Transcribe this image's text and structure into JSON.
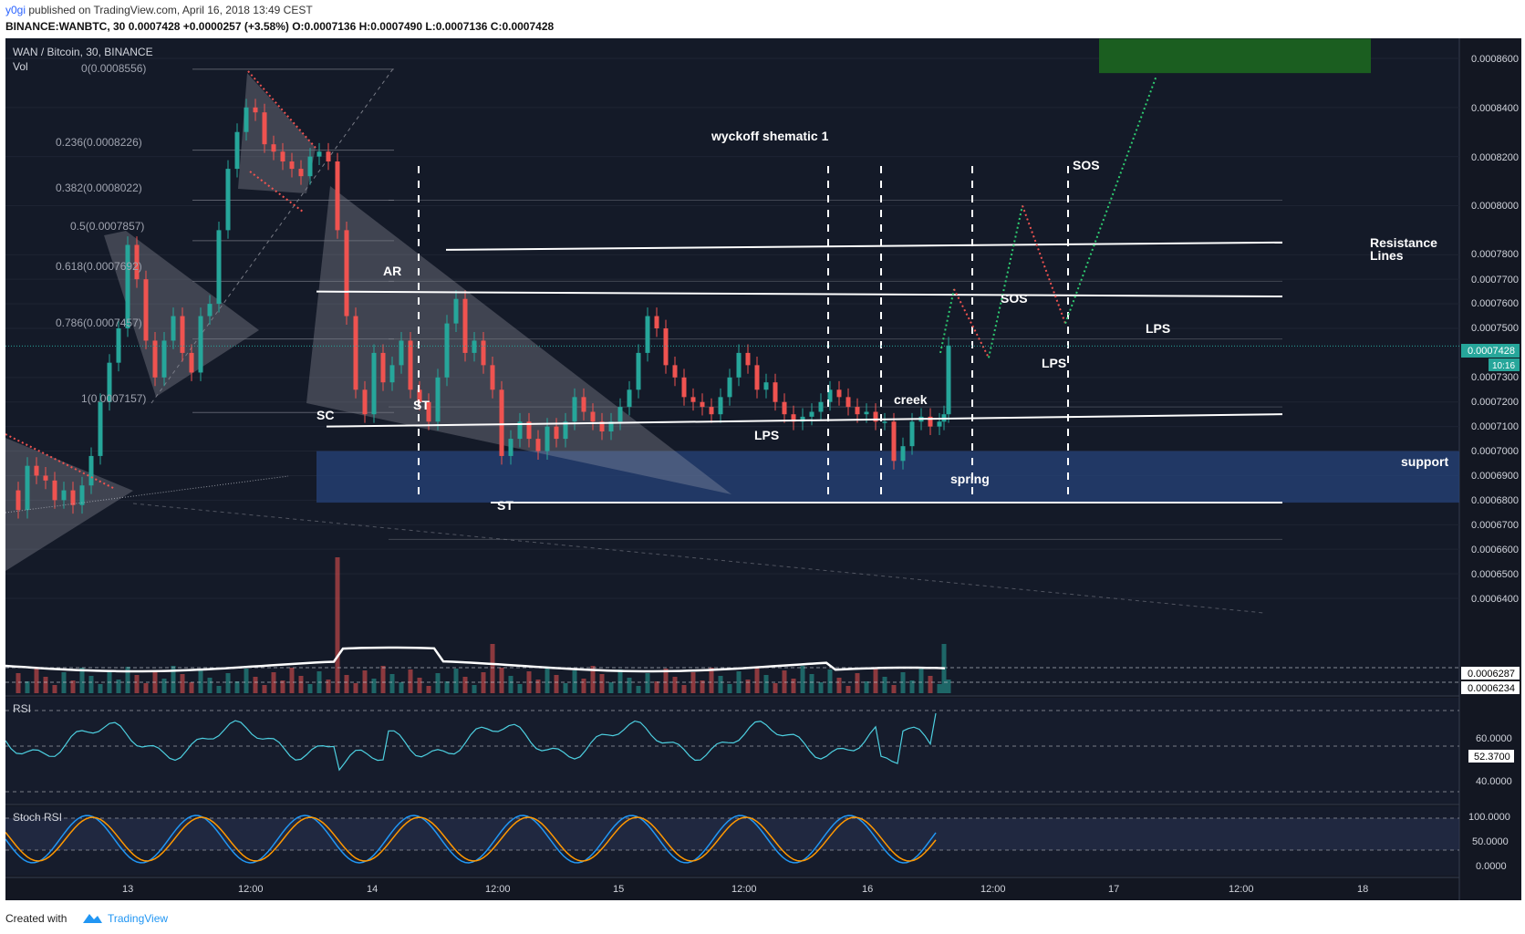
{
  "header": {
    "user": "y0gi",
    "published_text": "published on TradingView.com, April 16, 2018 13:49 CEST",
    "symbol": "BINANCE:WANBTC, 30",
    "last": "0.0007428",
    "change": "+0.0000257 (+3.58%)",
    "o_label": "O:",
    "o": "0.0007136",
    "h_label": "H:",
    "h": "0.0007490",
    "l_label": "L:",
    "l": "0.0007136",
    "c_label": "C:",
    "c": "0.0007428"
  },
  "legend": {
    "title": "WAN / Bitcoin, 30, BINANCE",
    "vol": "Vol"
  },
  "footer": {
    "created_with": "Created with",
    "brand": "TradingView"
  },
  "colors": {
    "bg": "#131722",
    "up": "#26a69a",
    "down": "#ef5350",
    "green_box": "#1b5e20",
    "support": "#26437a"
  },
  "chart_data": {
    "type": "candlestick",
    "title": "wyckoff shematic 1",
    "price_axis": {
      "ticks": [
        "0.0008600",
        "0.0008400",
        "0.0008200",
        "0.0008000",
        "0.0007800",
        "0.0007700",
        "0.0007600",
        "0.0007500",
        "0.0007300",
        "0.0007200",
        "0.0007100",
        "0.0007000",
        "0.0006900",
        "0.0006800",
        "0.0006700",
        "0.0006600",
        "0.0006500",
        "0.0006400"
      ],
      "current_price": "0.0007428",
      "countdown": "10:16",
      "vol_labels": [
        "0.0006287",
        "0.0006234"
      ],
      "range": [
        0.00063,
        0.00087
      ]
    },
    "time_axis": {
      "ticks": [
        "13",
        "12:00",
        "14",
        "12:00",
        "15",
        "12:00",
        "16",
        "12:00",
        "17",
        "12:00",
        "18"
      ]
    },
    "fib_levels": [
      {
        "ratio": "0",
        "price": "0.0008556"
      },
      {
        "ratio": "0.236",
        "price": "0.0008226"
      },
      {
        "ratio": "0.382",
        "price": "0.0008022"
      },
      {
        "ratio": "0.5",
        "price": "0.0007857"
      },
      {
        "ratio": "0.618",
        "price": "0.0007692"
      },
      {
        "ratio": "0.786",
        "price": "0.0007457"
      },
      {
        "ratio": "1",
        "price": "0.0007157"
      }
    ],
    "annotations": [
      "AR",
      "SC",
      "ST",
      "ST",
      "LPS",
      "creek",
      "spring",
      "SOS",
      "LPS",
      "SOS",
      "LPS",
      "Resistance",
      "Lines",
      "support"
    ],
    "key_levels": {
      "resistance": [
        0.000782,
        0.000765
      ],
      "support_zone": [
        0.000679,
        0.0007
      ],
      "target_zone": [
        0.000854,
        0.000868
      ]
    },
    "panes": [
      "RSI",
      "Stoch RSI"
    ],
    "rsi": {
      "ticks": [
        "60.0000",
        "40.0000"
      ],
      "current": "52.3700"
    },
    "stoch": {
      "ticks": [
        "100.0000",
        "50.0000",
        "0.0000"
      ]
    }
  }
}
